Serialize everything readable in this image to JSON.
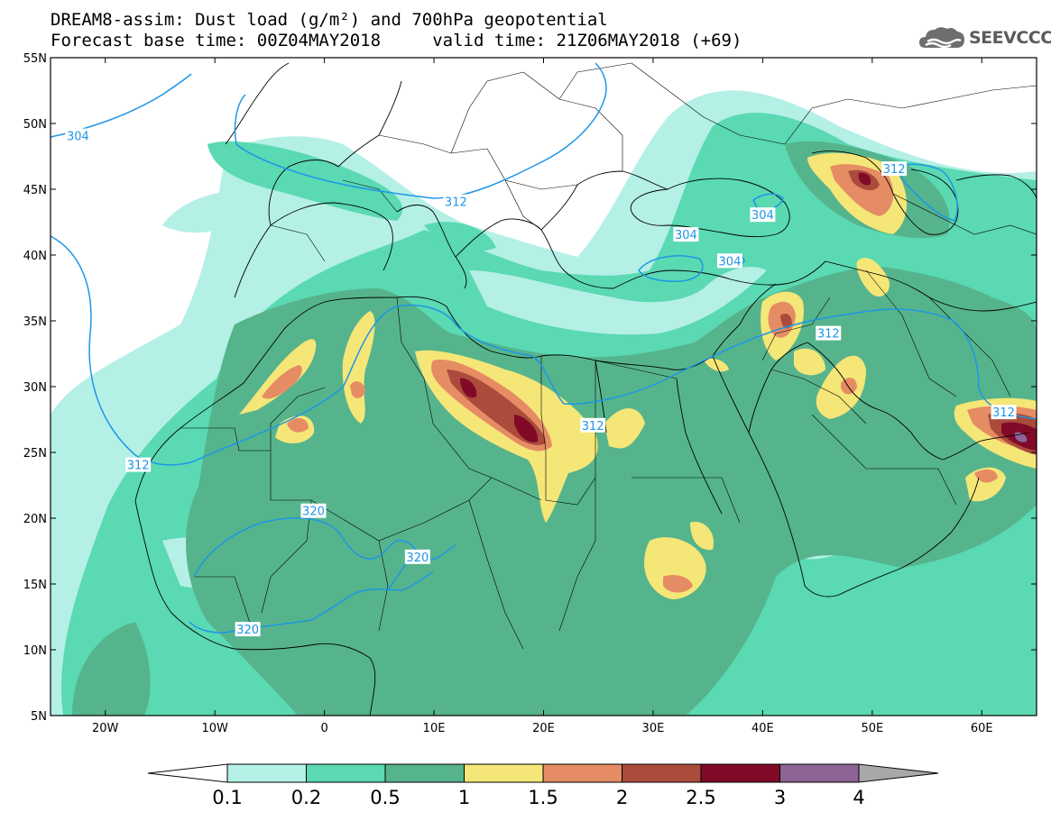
{
  "header": {
    "title_line1": "DREAM8-assim: Dust load (g/m²) and 700hPa geopotential",
    "title_line2": "Forecast base time: 00Z04MAY2018     valid time: 21Z06MAY2018 (+69)"
  },
  "logo": {
    "text": "SEEVCCC",
    "icon": "cloud-logo-icon"
  },
  "map": {
    "lon_range": [
      -25,
      65
    ],
    "lat_range": [
      5,
      55
    ],
    "lat_ticks": [
      "5N",
      "10N",
      "15N",
      "20N",
      "25N",
      "30N",
      "35N",
      "40N",
      "45N",
      "50N",
      "55N"
    ],
    "lon_ticks": [
      "20W",
      "10W",
      "0",
      "10E",
      "20E",
      "30E",
      "40E",
      "50E",
      "60E"
    ],
    "contour_color": "#1e96e6",
    "contour_labels": [
      {
        "text": "304",
        "lon": -22.5,
        "lat": 49.0
      },
      {
        "text": "312",
        "lon": 12.0,
        "lat": 44.0
      },
      {
        "text": "304",
        "lon": 40.0,
        "lat": 43.0
      },
      {
        "text": "304",
        "lon": 33.0,
        "lat": 41.5
      },
      {
        "text": "304",
        "lon": 37.0,
        "lat": 39.5
      },
      {
        "text": "312",
        "lon": 52.0,
        "lat": 46.5
      },
      {
        "text": "312",
        "lon": 46.0,
        "lat": 34.0
      },
      {
        "text": "312",
        "lon": 62.0,
        "lat": 28.0
      },
      {
        "text": "312",
        "lon": 24.5,
        "lat": 27.0
      },
      {
        "text": "312",
        "lon": -17.0,
        "lat": 24.0
      },
      {
        "text": "320",
        "lon": -1.0,
        "lat": 20.5
      },
      {
        "text": "320",
        "lon": 8.5,
        "lat": 17.0
      },
      {
        "text": "320",
        "lon": -7.0,
        "lat": 11.5
      }
    ]
  },
  "colorbar": {
    "labels": [
      "0.1",
      "0.2",
      "0.5",
      "1",
      "1.5",
      "2",
      "2.5",
      "3",
      "4"
    ],
    "colors": [
      "#b4f0e6",
      "#5ad9b3",
      "#56b48c",
      "#f5e678",
      "#e68c64",
      "#aa4b3c",
      "#800a28",
      "#8c6496",
      "#a8a8a8"
    ]
  }
}
